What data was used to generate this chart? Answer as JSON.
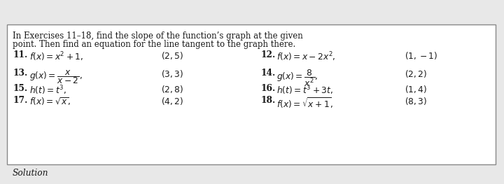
{
  "bg_color": "#e8e8e8",
  "box_bg": "#ffffff",
  "box_border": "#888888",
  "header_line1": "In Exercises 11–18, find the slope of the function’s graph at the given",
  "header_line2": "point. Then find an equation for the line tangent to the graph there.",
  "footer_text": "Solution",
  "rows": [
    {
      "left_num": "11.",
      "left_expr": "$f(x) = x^2 + 1,$",
      "left_pt": "$(2, 5)$",
      "right_num": "12.",
      "right_expr": "$f(x) = x - 2x^2,$",
      "right_pt": "$(1, -1)$"
    },
    {
      "left_num": "13.",
      "left_expr": "$g(x) = \\dfrac{x}{x-2},$",
      "left_pt": "$(3, 3)$",
      "right_num": "14.",
      "right_expr": "$g(x) = \\dfrac{8}{x^2},$",
      "right_pt": "$(2, 2)$"
    },
    {
      "left_num": "15.",
      "left_expr": "$h(t) = t^3,$",
      "left_pt": "$(2, 8)$",
      "right_num": "16.",
      "right_expr": "$h(t) = t^3 + 3t,$",
      "right_pt": "$(1, 4)$"
    },
    {
      "left_num": "17.",
      "left_expr": "$f(x) = \\sqrt{x},$",
      "left_pt": "$(4, 2)$",
      "right_num": "18.",
      "right_expr": "$f(x) = \\sqrt{x+1},$",
      "right_pt": "$(8, 3)$"
    }
  ],
  "text_color": "#1a1a1a",
  "font_size_header": 8.5,
  "font_size_entry": 8.8,
  "font_size_footer": 8.8
}
